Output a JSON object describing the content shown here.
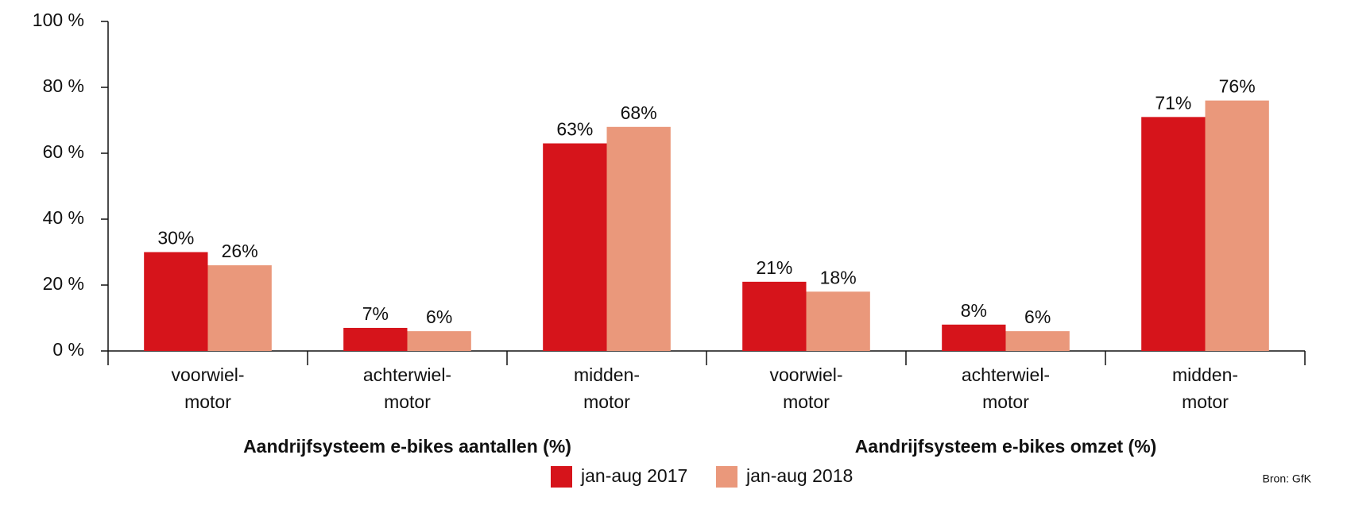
{
  "chart_data": {
    "type": "bar",
    "categories": [
      [
        "voorwiel-",
        "motor"
      ],
      [
        "achterwiel-",
        "motor"
      ],
      [
        "midden-",
        "motor"
      ],
      [
        "voorwiel-",
        "motor"
      ],
      [
        "achterwiel-",
        "motor"
      ],
      [
        "midden-",
        "motor"
      ]
    ],
    "groups": [
      "Aandrijfsysteem e-bikes aantallen (%)",
      "Aandrijfsysteem e-bikes omzet (%)"
    ],
    "series": [
      {
        "name": "jan-aug 2017",
        "color": "#d6141b",
        "values": [
          30,
          7,
          63,
          21,
          8,
          71
        ],
        "value_labels": [
          "30%",
          "7%",
          "63%",
          "21%",
          "8%",
          "71%"
        ]
      },
      {
        "name": "jan-aug 2018",
        "color": "#ea987b",
        "values": [
          26,
          6,
          68,
          18,
          6,
          76
        ],
        "value_labels": [
          "26%",
          "6%",
          "68%",
          "18%",
          "6%",
          "76%"
        ]
      }
    ],
    "ylim": [
      0,
      100
    ],
    "yticks": [
      {
        "value": 0,
        "label": "0 %"
      },
      {
        "value": 20,
        "label": "20 %"
      },
      {
        "value": 40,
        "label": "40 %"
      },
      {
        "value": 60,
        "label": "60 %"
      },
      {
        "value": 80,
        "label": "80 %"
      },
      {
        "value": 100,
        "label": "100 %"
      }
    ],
    "source": "Bron: GfK"
  }
}
